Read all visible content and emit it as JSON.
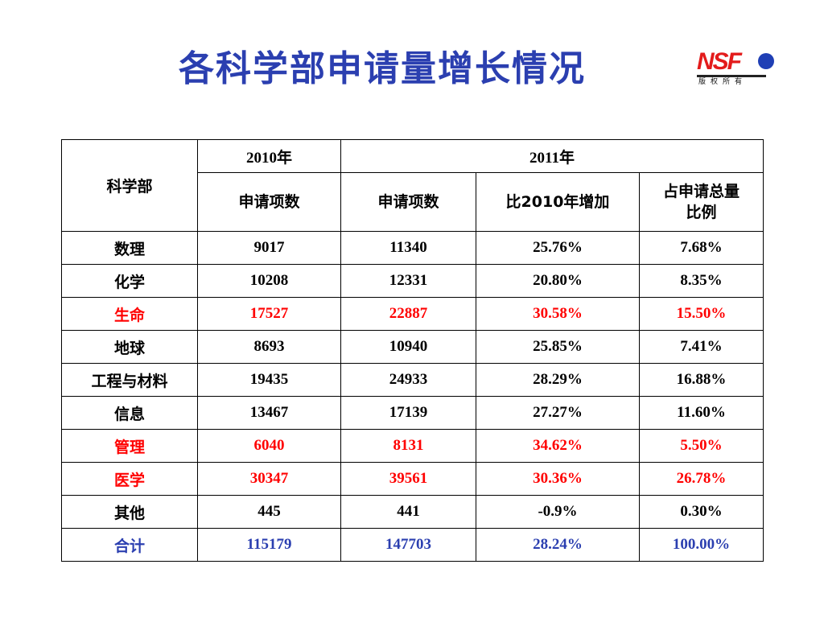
{
  "title": "各科学部申请量增长情况",
  "logo": {
    "text": "NSF",
    "subtext": "版权所有",
    "colors": {
      "text": "#e31b1b",
      "dot": "#1f3fb5"
    }
  },
  "table": {
    "header": {
      "dept": "科学部",
      "year2010": "2010年",
      "year2011": "2011年",
      "col_2010_count": "申请项数",
      "col_2011_count": "申请项数",
      "col_increase": "比2010年增加",
      "col_share_line1": "占申请总量",
      "col_share_line2": "比例"
    },
    "rows": [
      {
        "name": "数理",
        "v2010": "9017",
        "v2011": "11340",
        "increase": "25.76%",
        "share": "7.68%",
        "highlight": "none"
      },
      {
        "name": "化学",
        "v2010": "10208",
        "v2011": "12331",
        "increase": "20.80%",
        "share": "8.35%",
        "highlight": "none"
      },
      {
        "name": "生命",
        "v2010": "17527",
        "v2011": "22887",
        "increase": "30.58%",
        "share": "15.50%",
        "highlight": "red"
      },
      {
        "name": "地球",
        "v2010": "8693",
        "v2011": "10940",
        "increase": "25.85%",
        "share": "7.41%",
        "highlight": "none"
      },
      {
        "name": "工程与材料",
        "v2010": "19435",
        "v2011": "24933",
        "increase": "28.29%",
        "share": "16.88%",
        "highlight": "none"
      },
      {
        "name": "信息",
        "v2010": "13467",
        "v2011": "17139",
        "increase": "27.27%",
        "share": "11.60%",
        "highlight": "none"
      },
      {
        "name": "管理",
        "v2010": "6040",
        "v2011": "8131",
        "increase": "34.62%",
        "share": "5.50%",
        "highlight": "red"
      },
      {
        "name": "医学",
        "v2010": "30347",
        "v2011": "39561",
        "increase": "30.36%",
        "share": "26.78%",
        "highlight": "red"
      },
      {
        "name": "其他",
        "v2010": "445",
        "v2011": "441",
        "increase": "-0.9%",
        "share": "0.30%",
        "highlight": "none"
      },
      {
        "name": "合计",
        "v2010": "115179",
        "v2011": "147703",
        "increase": "28.24%",
        "share": "100.00%",
        "highlight": "blue"
      }
    ]
  },
  "colors": {
    "title": "#2b3fb0",
    "highlight_red": "#ff0000",
    "highlight_blue": "#2b3fb0"
  }
}
